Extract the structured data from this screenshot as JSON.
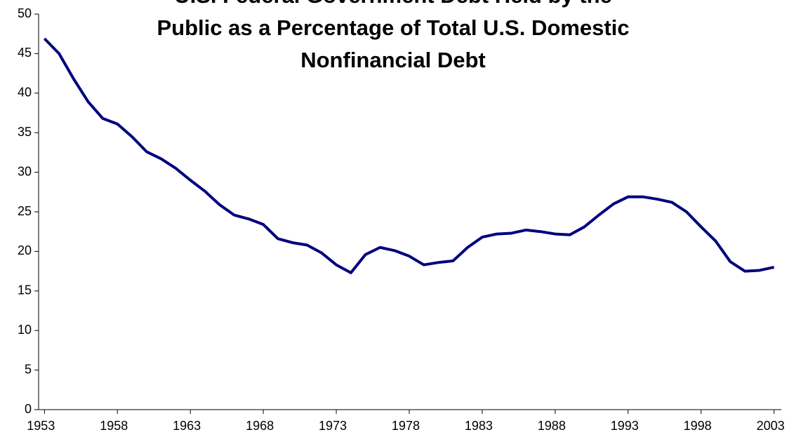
{
  "chart_data": {
    "type": "line",
    "title": [
      "U.S. Federal Government Debt Held by the",
      "Public as a Percentage of Total U.S. Domestic",
      "Nonfinancial Debt"
    ],
    "x": [
      1953,
      1954,
      1955,
      1956,
      1957,
      1958,
      1959,
      1960,
      1961,
      1962,
      1963,
      1964,
      1965,
      1966,
      1967,
      1968,
      1969,
      1970,
      1971,
      1972,
      1973,
      1974,
      1975,
      1976,
      1977,
      1978,
      1979,
      1980,
      1981,
      1982,
      1983,
      1984,
      1985,
      1986,
      1987,
      1988,
      1989,
      1990,
      1991,
      1992,
      1993,
      1994,
      1995,
      1996,
      1997,
      1998,
      1999,
      2000,
      2001,
      2002,
      2003
    ],
    "series": [
      {
        "color": "#000080",
        "values": [
          46.9,
          45.0,
          41.8,
          38.9,
          36.8,
          36.1,
          34.5,
          32.6,
          31.7,
          30.5,
          29.0,
          27.6,
          25.9,
          24.6,
          24.1,
          23.4,
          21.6,
          21.1,
          20.8,
          19.8,
          18.3,
          17.3,
          19.6,
          20.5,
          20.1,
          19.4,
          18.3,
          18.6,
          18.8,
          20.5,
          21.8,
          22.2,
          22.3,
          22.7,
          22.5,
          22.2,
          22.1,
          23.1,
          24.6,
          26.0,
          26.9,
          26.9,
          26.6,
          26.2,
          25.0,
          23.1,
          21.3,
          18.7,
          17.5,
          17.6,
          18.0
        ]
      }
    ],
    "xlim": [
      1952.6,
      2003.5
    ],
    "xticks": [
      1953,
      1958,
      1963,
      1968,
      1973,
      1978,
      1983,
      1988,
      1993,
      1998,
      2003
    ],
    "ylim": [
      0,
      50
    ],
    "yticks": [
      0,
      5,
      10,
      15,
      20,
      25,
      30,
      35,
      40,
      45,
      50
    ],
    "grid": false
  }
}
